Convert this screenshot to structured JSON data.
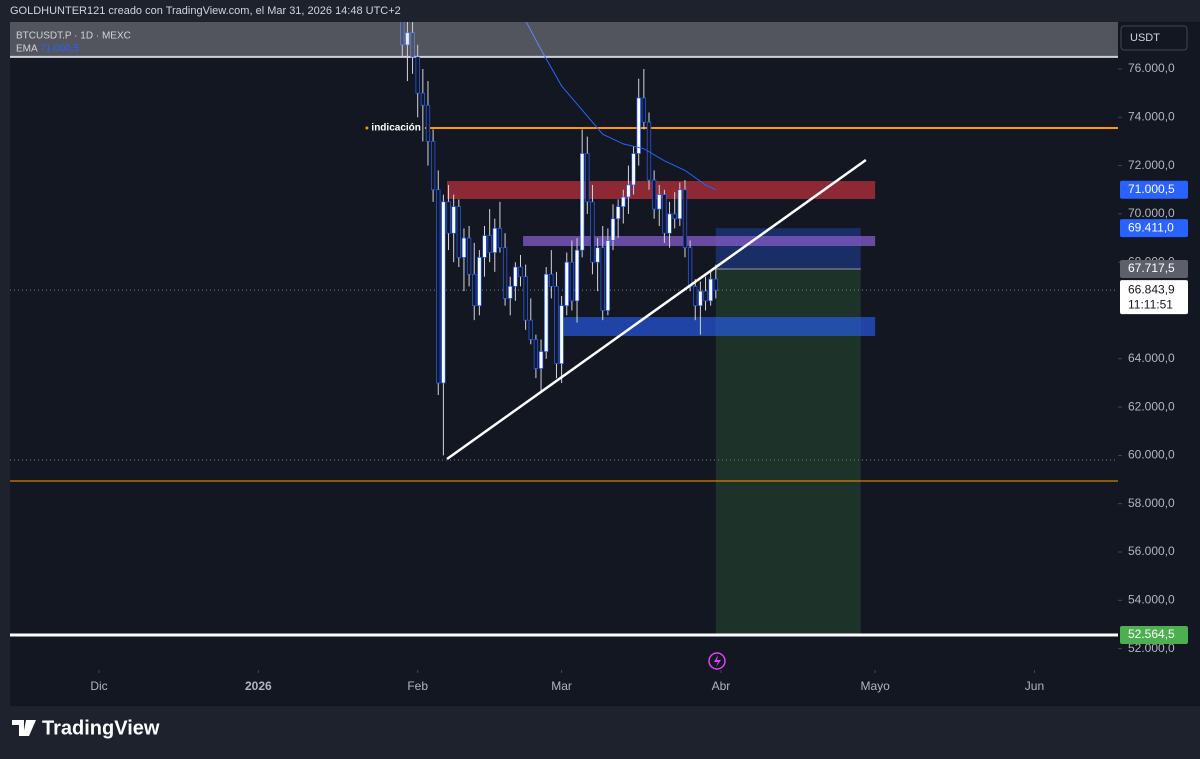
{
  "header": {
    "attribution": "GOLDHUNTER121 creado con TradingView.com, el Mar 31, 2026 14:48 UTC+2"
  },
  "chart_data": {
    "type": "candlestick",
    "symbol": "BTCUSDT.P · 1D · MEXC",
    "indicator": {
      "name": "EMA",
      "value": 71000.5,
      "value_label": "71.000,5",
      "color": "#2962ff"
    },
    "axis_unit": "USDT",
    "x": [
      59,
      60,
      61,
      62,
      63,
      64,
      65,
      66,
      67,
      68,
      69,
      70,
      71,
      72,
      73,
      74,
      75,
      76,
      77,
      78,
      79,
      80,
      81,
      82,
      83,
      84,
      85,
      86,
      87,
      88,
      89,
      90,
      91,
      92,
      93,
      94,
      95,
      96,
      97,
      98,
      99,
      100,
      101,
      102,
      103,
      104,
      105,
      106,
      107,
      108,
      109,
      110,
      111,
      112,
      113,
      114,
      115,
      116,
      117,
      118,
      119,
      120
    ],
    "open": [
      79000,
      77000,
      77500,
      76500,
      75000,
      74500,
      73000,
      71000,
      63000,
      70500,
      69200,
      70300,
      68200,
      69000,
      67500,
      66200,
      68200,
      69100,
      68400,
      69400,
      68600,
      66500,
      67000,
      67800,
      67400,
      65600,
      64800,
      63600,
      64300,
      67500,
      67000,
      63800,
      66200,
      68000,
      66400,
      68500,
      72500,
      70500,
      68000,
      68600,
      66000,
      68900,
      69800,
      70300,
      70700,
      71200,
      72500,
      74800,
      73800,
      71400,
      70200,
      70800,
      69200,
      70000,
      69800,
      71000,
      68600,
      67000,
      66200,
      66800,
      66400,
      67300
    ],
    "high": [
      79500,
      78500,
      78000,
      77000,
      76000,
      75500,
      73500,
      71800,
      70800,
      71200,
      70800,
      70600,
      69400,
      69500,
      68800,
      68500,
      69500,
      70200,
      69800,
      70500,
      69200,
      67400,
      68000,
      68300,
      67900,
      66500,
      65000,
      64800,
      67800,
      68500,
      67600,
      66600,
      68400,
      68900,
      69000,
      73500,
      73200,
      71200,
      69000,
      69500,
      69400,
      70400,
      70600,
      71000,
      72000,
      72800,
      75600,
      76000,
      74200,
      71800,
      71200,
      71000,
      70500,
      70900,
      71300,
      71400,
      68900,
      67300,
      67200,
      67400,
      67600,
      67900
    ],
    "low": [
      76500,
      75500,
      75800,
      74000,
      73000,
      72000,
      70500,
      62500,
      60000,
      68500,
      68000,
      67800,
      66800,
      67000,
      65600,
      65800,
      67400,
      68000,
      67600,
      68400,
      66200,
      65800,
      66400,
      67000,
      65200,
      64600,
      63200,
      62600,
      64000,
      66500,
      63200,
      63000,
      65800,
      66000,
      65500,
      68200,
      70000,
      67500,
      66800,
      65600,
      65800,
      68500,
      69000,
      69600,
      70000,
      70800,
      72000,
      73500,
      71000,
      69800,
      69500,
      68800,
      68600,
      69400,
      69500,
      68200,
      66800,
      65600,
      65000,
      66000,
      66200,
      66500
    ],
    "close": [
      77000,
      77500,
      76500,
      75000,
      74500,
      73000,
      71000,
      63000,
      70500,
      69200,
      70300,
      68200,
      69000,
      67500,
      66200,
      68200,
      69100,
      68400,
      69400,
      68600,
      66500,
      67000,
      67800,
      67400,
      65600,
      64800,
      63600,
      64300,
      67500,
      67000,
      63800,
      66200,
      68000,
      66400,
      68500,
      72500,
      70500,
      68000,
      68600,
      66000,
      68900,
      69800,
      70300,
      70700,
      71200,
      72500,
      74800,
      73800,
      71400,
      70200,
      70800,
      69200,
      70000,
      69800,
      71000,
      68600,
      67000,
      66200,
      66800,
      66400,
      67300,
      66843.9
    ],
    "colors": {
      "body_up": "#ffffff",
      "body_down": "#131722",
      "border": "#2962ff",
      "wick": "#d1d4dc"
    },
    "xlim": [
      -17.32,
      198.25
    ],
    "xticks": [
      {
        "value": 0,
        "label": "Dic"
      },
      {
        "value": 31,
        "label": "2026"
      },
      {
        "value": 62,
        "label": "Feb"
      },
      {
        "value": 90,
        "label": "Mar"
      },
      {
        "value": 121,
        "label": "Abr"
      },
      {
        "value": 151,
        "label": "Mayo"
      },
      {
        "value": 182,
        "label": "Jun"
      }
    ],
    "ylim": [
      51114,
      77946
    ],
    "yticks": [
      {
        "value": 52000,
        "label": "52.000,0"
      },
      {
        "value": 54000,
        "label": "54.000,0"
      },
      {
        "value": 56000,
        "label": "56.000,0"
      },
      {
        "value": 58000,
        "label": "58.000,0"
      },
      {
        "value": 60000,
        "label": "60.000,0"
      },
      {
        "value": 62000,
        "label": "62.000,0"
      },
      {
        "value": 64000,
        "label": "64.000,0"
      },
      {
        "value": 68000,
        "label": "68.000,0"
      },
      {
        "value": 70000,
        "label": "70.000,0"
      },
      {
        "value": 72000,
        "label": "72.000,0"
      },
      {
        "value": 74000,
        "label": "74.000,0"
      },
      {
        "value": 76000,
        "label": "76.000,0"
      }
    ],
    "ema": {
      "x": [
        83,
        86,
        90,
        94,
        98,
        102,
        106,
        110,
        114,
        118,
        120
      ],
      "values": [
        78000,
        76800,
        75300,
        74300,
        73300,
        72900,
        72700,
        72200,
        71800,
        71200,
        71000.5
      ],
      "color": "#2962ff"
    },
    "levels": [
      {
        "name": "indicación",
        "value": 73557,
        "x": 63.4,
        "color": "#ff9800",
        "width": 2
      },
      {
        "value": 58940,
        "color": "#ff9800",
        "width": 1
      },
      {
        "value": 76500,
        "color": "#d1d4dc",
        "width": 2
      },
      {
        "value": 52564.5,
        "color": "#ffffff",
        "width": 3
      }
    ],
    "zones": [
      {
        "from": 67.7,
        "to": 151,
        "low": 70617,
        "high": 71362,
        "color": "rgba(242,54,69,0.55)"
      },
      {
        "from": 82.5,
        "to": 151,
        "low": 68670,
        "high": 69085,
        "color": "rgba(126,87,194,0.8)"
      },
      {
        "from": 89.7,
        "to": 151,
        "low": 64944,
        "high": 65731,
        "color": "rgba(41,98,255,0.6)"
      }
    ],
    "trendline": {
      "x": [
        67.7,
        149.2
      ],
      "values": [
        59850,
        72230
      ],
      "color": "#ffffff"
    },
    "position": {
      "x": [
        120,
        148.2
      ],
      "entry": 67717.5,
      "entry_label": "67.717,5",
      "stop": 69411,
      "stop_label": "69.411,0",
      "target": 52564.5,
      "target_label": "52.564,5",
      "stop_color": "rgba(41,98,255,0.3)",
      "target_color": "rgba(76,175,80,0.18)"
    },
    "low_line": 59810,
    "last_price": 66843.9,
    "last_price_label": "66.843,9",
    "countdown": "11:11:51"
  },
  "footer": {
    "brand": "TradingView"
  }
}
